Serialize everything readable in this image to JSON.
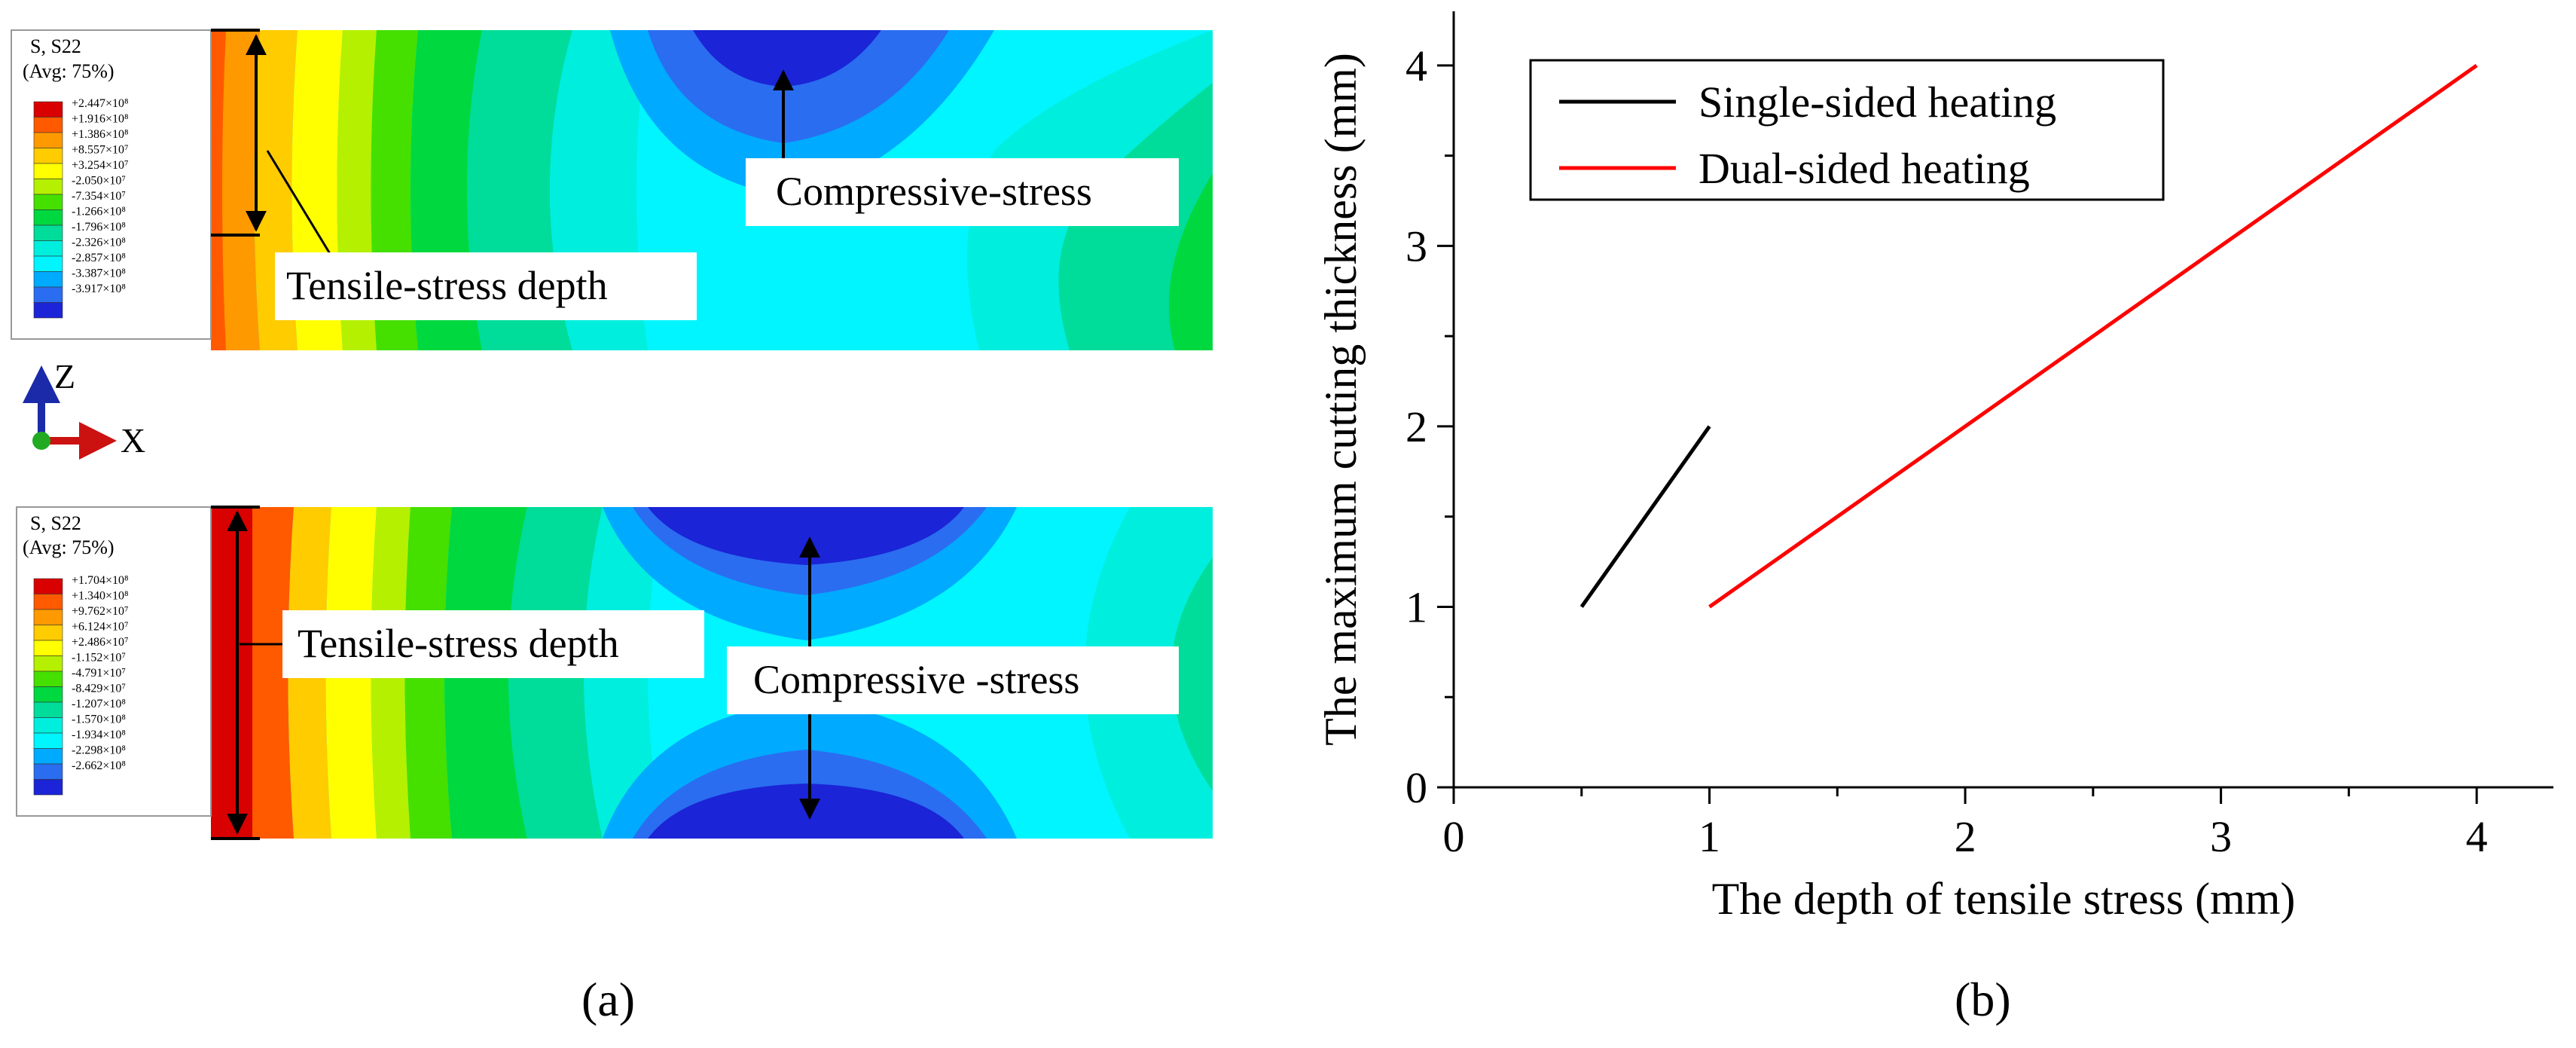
{
  "colors": {
    "contour": [
      "#d90000",
      "#ff5a00",
      "#ff9900",
      "#ffcc00",
      "#ffff00",
      "#b5f000",
      "#45e000",
      "#00d840",
      "#00dc9a",
      "#00eede",
      "#00f5ff",
      "#00aaff",
      "#2a6df0",
      "#1b24d6"
    ],
    "single_series": "#000000",
    "dual_series": "#ff0000",
    "arrow": "#000000",
    "axis_z": "#1a2aa8",
    "axis_x": "#cc1111",
    "axis_origin": "#22aa22"
  },
  "panel_a": {
    "label": "(a)",
    "top": {
      "legend_title": "S, S22",
      "legend_avg": "(Avg: 75%)",
      "legend_values": [
        "+2.447×10⁸",
        "+1.916×10⁸",
        "+1.386×10⁸",
        "+8.557×10⁷",
        "+3.254×10⁷",
        "-2.050×10⁷",
        "-7.354×10⁷",
        "-1.266×10⁸",
        "-1.796×10⁸",
        "-2.326×10⁸",
        "-2.857×10⁸",
        "-3.387×10⁸",
        "-3.917×10⁸"
      ],
      "tensile_label": "Tensile-stress depth",
      "compressive_label": "Compressive-stress"
    },
    "bottom": {
      "legend_title": "S, S22",
      "legend_avg": "(Avg: 75%)",
      "legend_values": [
        "+1.704×10⁸",
        "+1.340×10⁸",
        "+9.762×10⁷",
        "+6.124×10⁷",
        "+2.486×10⁷",
        "-1.152×10⁷",
        "-4.791×10⁷",
        "-8.429×10⁷",
        "-1.207×10⁸",
        "-1.570×10⁸",
        "-1.934×10⁸",
        "-2.298×10⁸",
        "-2.662×10⁸"
      ],
      "tensile_label": "Tensile-stress depth",
      "compressive_label": "Compressive -stress"
    },
    "axis_z_label": "Z",
    "axis_x_label": "X"
  },
  "panel_b": {
    "label": "(b)"
  },
  "chart_data": {
    "type": "line",
    "title": "",
    "xlabel": "The depth of tensile stress (mm)",
    "ylabel": "The maximum cutting thickness (mm)",
    "xlim": [
      0,
      4.3
    ],
    "ylim": [
      0,
      4.3
    ],
    "xticks": [
      "0",
      "1",
      "2",
      "3",
      "4"
    ],
    "yticks": [
      "0",
      "1",
      "2",
      "3",
      "4"
    ],
    "legend_position": "top-left",
    "series": [
      {
        "name": "Single-sided heating",
        "x": [
          0.5,
          1
        ],
        "y": [
          1,
          2
        ],
        "color": "#000000"
      },
      {
        "name": "Dual-sided heating",
        "x": [
          1,
          4
        ],
        "y": [
          1,
          4
        ],
        "color": "#ff0000"
      }
    ]
  }
}
